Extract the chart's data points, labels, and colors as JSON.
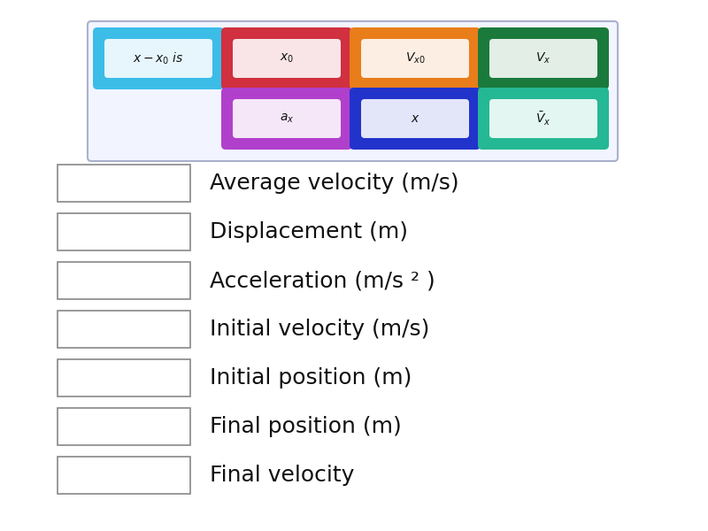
{
  "bg_color": "#ffffff",
  "items": [
    {
      "label": "$x - x_0$ is",
      "color": "#3bbde8",
      "row": 0,
      "col": 0
    },
    {
      "label": "$x_0$",
      "color": "#d03040",
      "row": 0,
      "col": 1
    },
    {
      "label": "$V_{x0}$",
      "color": "#e87d1a",
      "row": 0,
      "col": 2
    },
    {
      "label": "$V_x$",
      "color": "#1a7a3c",
      "row": 0,
      "col": 3
    },
    {
      "label": "$a_x$",
      "color": "#b040cc",
      "row": 1,
      "col": 0
    },
    {
      "label": "$x$",
      "color": "#2233cc",
      "row": 1,
      "col": 1
    },
    {
      "label": "$\\bar{V}_x$",
      "color": "#25b895",
      "row": 1,
      "col": 2
    }
  ],
  "match_labels": [
    "Average velocity (m/s)",
    "Displacement (m)",
    "Acceleration (m/s ² )",
    "Initial velocity (m/s)",
    "Initial position (m)",
    "Final position (m)",
    "Final velocity"
  ],
  "panel_color": "#f2f5ff",
  "panel_border": "#aab0cc"
}
